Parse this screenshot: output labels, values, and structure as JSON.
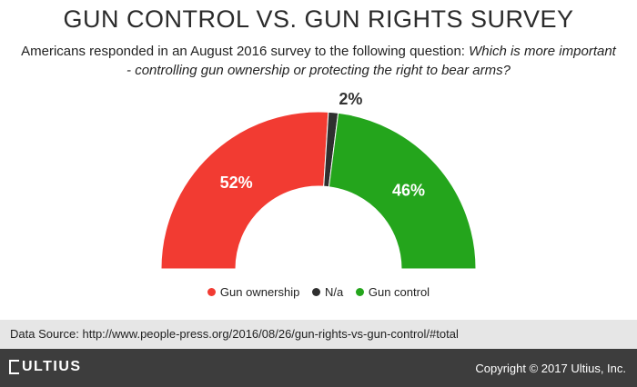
{
  "chart_data": {
    "type": "pie",
    "variant": "half-donut",
    "title": "GUN CONTROL VS. GUN RIGHTS SURVEY",
    "subtitle": "Americans responded in an August 2016 survey to the following question:",
    "question": "Which is more important - controlling gun ownership or protecting the right to bear arms?",
    "slices": [
      {
        "name": "Gun ownership",
        "value": 52,
        "label": "52%",
        "color": "#f23b32"
      },
      {
        "name": "N/a",
        "value": 2,
        "label": "2%",
        "color": "#2f2f2f"
      },
      {
        "name": "Gun control",
        "value": 46,
        "label": "46%",
        "color": "#24a51c"
      }
    ],
    "legend_position": "bottom-center"
  },
  "source": {
    "text": "Data Source: http://www.people-press.org/2016/08/26/gun-rights-vs-gun-control/#total"
  },
  "footer": {
    "brand": "ULTIUS",
    "copyright": "Copyright © 2017 Ultius, Inc."
  }
}
